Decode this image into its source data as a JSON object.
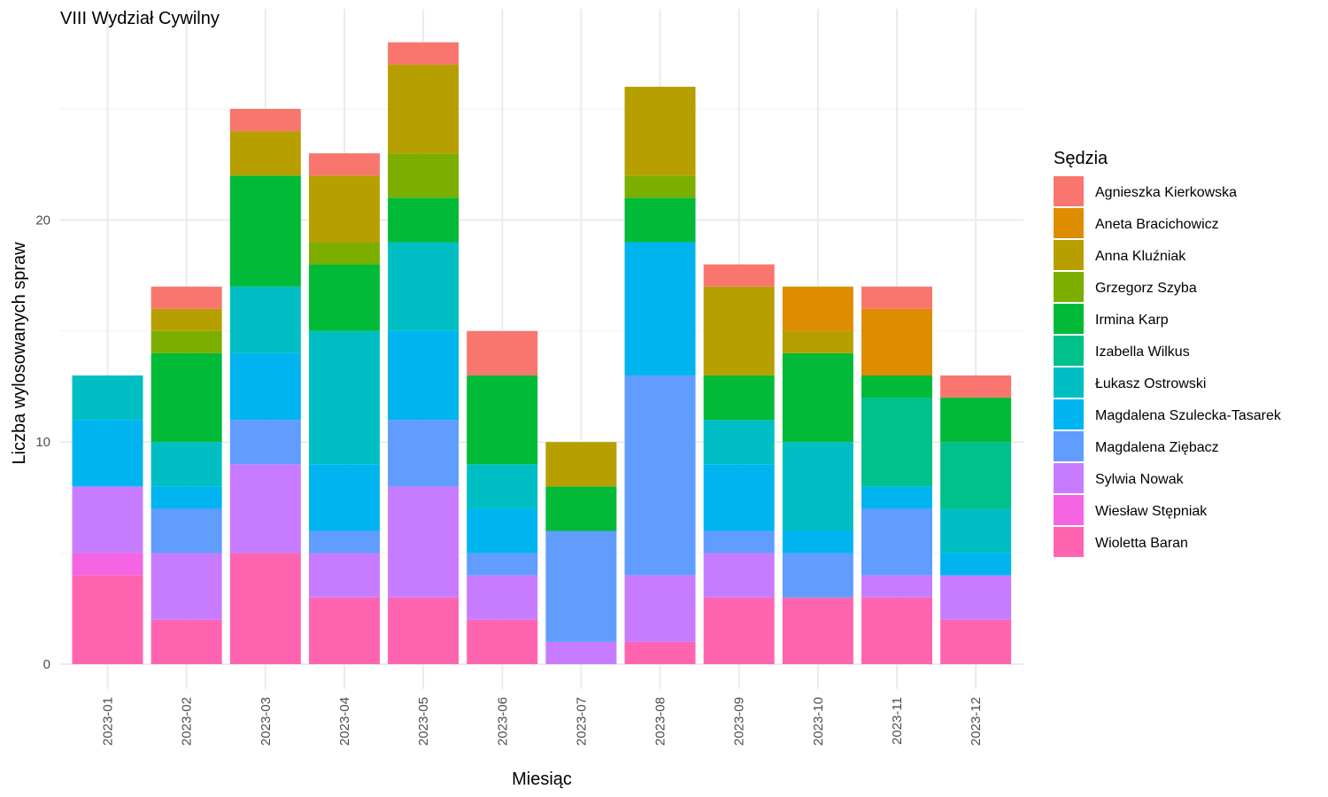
{
  "chart_data": {
    "type": "bar",
    "stacked": true,
    "title": "VIII Wydział Cywilny",
    "xlabel": "Miesiąc",
    "ylabel": "Liczba wylosowanych spraw",
    "ylim": [
      0,
      28
    ],
    "yticks": [
      0,
      10,
      20
    ],
    "grid": true,
    "legend_title": "Sędzia",
    "legend_position": "right",
    "categories": [
      "2023-01",
      "2023-02",
      "2023-03",
      "2023-04",
      "2023-05",
      "2023-06",
      "2023-07",
      "2023-08",
      "2023-09",
      "2023-10",
      "2023-11",
      "2023-12"
    ],
    "series": [
      {
        "name": "Agnieszka Kierkowska",
        "color": "#F8766D",
        "values": [
          0,
          1,
          1,
          1,
          1,
          2,
          0,
          0,
          1,
          0,
          1,
          1
        ]
      },
      {
        "name": "Aneta Bracichowicz",
        "color": "#DE8C00",
        "values": [
          0,
          0,
          0,
          0,
          0,
          0,
          0,
          0,
          0,
          2,
          3,
          0
        ]
      },
      {
        "name": "Anna Kluźniak",
        "color": "#B79F00",
        "values": [
          0,
          1,
          2,
          3,
          4,
          0,
          2,
          4,
          4,
          1,
          0,
          0
        ]
      },
      {
        "name": "Grzegorz Szyba",
        "color": "#7CAE00",
        "values": [
          0,
          1,
          0,
          1,
          2,
          0,
          0,
          1,
          0,
          0,
          0,
          0
        ]
      },
      {
        "name": "Irmina Karp",
        "color": "#00BA38",
        "values": [
          0,
          4,
          5,
          3,
          2,
          4,
          2,
          2,
          2,
          4,
          1,
          2
        ]
      },
      {
        "name": "Izabella Wilkus",
        "color": "#00C08B",
        "values": [
          0,
          0,
          0,
          0,
          0,
          0,
          0,
          0,
          0,
          0,
          4,
          3
        ]
      },
      {
        "name": "Łukasz Ostrowski",
        "color": "#00BFC4",
        "values": [
          2,
          2,
          3,
          6,
          4,
          2,
          0,
          0,
          2,
          4,
          0,
          2
        ]
      },
      {
        "name": "Magdalena Szulecka-Tasarek",
        "color": "#00B4F0",
        "values": [
          3,
          1,
          3,
          3,
          4,
          2,
          0,
          6,
          3,
          1,
          1,
          1
        ]
      },
      {
        "name": "Magdalena Ziębacz",
        "color": "#619CFF",
        "values": [
          0,
          2,
          2,
          1,
          3,
          1,
          5,
          9,
          1,
          2,
          3,
          0
        ]
      },
      {
        "name": "Sylwia Nowak",
        "color": "#C77CFF",
        "values": [
          3,
          3,
          4,
          2,
          5,
          2,
          1,
          3,
          2,
          0,
          1,
          2
        ]
      },
      {
        "name": "Wiesław Stępniak",
        "color": "#F564E3",
        "values": [
          1,
          0,
          0,
          0,
          0,
          0,
          0,
          0,
          0,
          0,
          0,
          0
        ]
      },
      {
        "name": "Wioletta Baran",
        "color": "#FF64B0",
        "values": [
          4,
          2,
          5,
          3,
          3,
          2,
          0,
          1,
          3,
          3,
          3,
          2
        ]
      }
    ]
  }
}
